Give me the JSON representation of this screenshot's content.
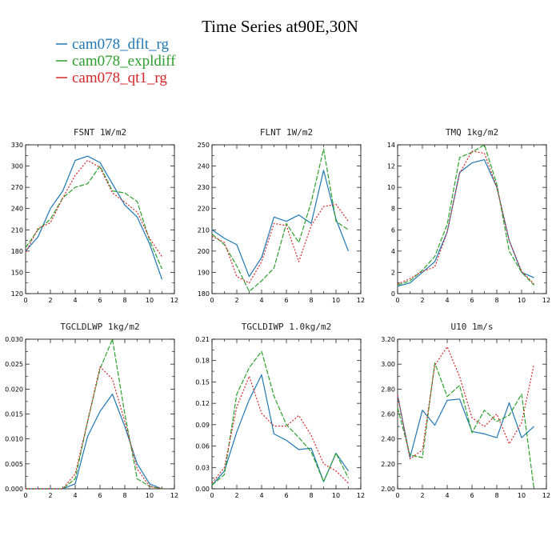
{
  "title": "Time Series at90E,30N",
  "colors": {
    "dflt": "#1f77b4",
    "expl": "#2ca02c",
    "qt1": "#d62728"
  },
  "legend": [
    {
      "label": "cam078_dflt_rg",
      "color": "#1f77b4"
    },
    {
      "label": "cam078_expldiff",
      "color": "#2ca02c"
    },
    {
      "label": "cam078_qt1_rg",
      "color": "#d62728"
    }
  ],
  "chart_data": [
    {
      "type": "line",
      "var": "FSNT",
      "unit": "1W/m2",
      "x": [
        0,
        1,
        2,
        3,
        4,
        5,
        6,
        7,
        8,
        9,
        10,
        11
      ],
      "xlim": [
        0,
        12
      ],
      "xticks": [
        "0",
        "2",
        "4",
        "6",
        "8",
        "10",
        "12"
      ],
      "ylim": [
        120,
        330
      ],
      "yticks": [
        "120",
        "150",
        "180",
        "210",
        "240",
        "270",
        "300",
        "330"
      ],
      "series": [
        {
          "name": "cam078_dflt_rg",
          "values": [
            180,
            200,
            240,
            265,
            308,
            314,
            305,
            275,
            245,
            228,
            190,
            140
          ]
        },
        {
          "name": "cam078_expldiff",
          "values": [
            185,
            210,
            225,
            255,
            270,
            275,
            300,
            265,
            262,
            250,
            195,
            155
          ]
        },
        {
          "name": "cam078_qt1_rg",
          "values": [
            178,
            212,
            220,
            255,
            287,
            308,
            298,
            262,
            249,
            235,
            198,
            172
          ]
        }
      ]
    },
    {
      "type": "line",
      "var": "FLNT",
      "unit": "1W/m2",
      "x": [
        0,
        1,
        2,
        3,
        4,
        5,
        6,
        7,
        8,
        9,
        10,
        11
      ],
      "xlim": [
        0,
        12
      ],
      "xticks": [
        "0",
        "2",
        "4",
        "6",
        "8",
        "10",
        "12"
      ],
      "ylim": [
        180,
        250
      ],
      "yticks": [
        "180",
        "190",
        "200",
        "210",
        "220",
        "230",
        "240",
        "250"
      ],
      "series": [
        {
          "name": "cam078_dflt_rg",
          "values": [
            210,
            206,
            203,
            188,
            197,
            216,
            214,
            217,
            213,
            238,
            215,
            200
          ]
        },
        {
          "name": "cam078_expldiff",
          "values": [
            208,
            203,
            193,
            181,
            186,
            192,
            213,
            204,
            223,
            248,
            214,
            210
          ]
        },
        {
          "name": "cam078_qt1_rg",
          "values": [
            207,
            204,
            188,
            185,
            195,
            213,
            212,
            195,
            212,
            221,
            222,
            214
          ]
        }
      ]
    },
    {
      "type": "line",
      "var": "TMQ",
      "unit": "1kg/m2",
      "x": [
        0,
        1,
        2,
        3,
        4,
        5,
        6,
        7,
        8,
        9,
        10,
        11
      ],
      "xlim": [
        0,
        12
      ],
      "xticks": [
        "0",
        "2",
        "4",
        "6",
        "8",
        "10",
        "12"
      ],
      "ylim": [
        0,
        14
      ],
      "yticks": [
        "0",
        "2",
        "4",
        "6",
        "8",
        "10",
        "12",
        "14"
      ],
      "series": [
        {
          "name": "cam078_dflt_rg",
          "values": [
            0.7,
            1.0,
            2.0,
            3.0,
            5.8,
            11.4,
            12.3,
            12.6,
            10.0,
            5.0,
            2.0,
            1.5
          ]
        },
        {
          "name": "cam078_expldiff",
          "values": [
            0.8,
            1.2,
            2.2,
            3.5,
            6.5,
            12.8,
            13.3,
            14.0,
            10.3,
            4.0,
            2.0,
            0.8
          ]
        },
        {
          "name": "cam078_qt1_rg",
          "values": [
            0.9,
            1.4,
            2.1,
            2.5,
            5.8,
            11.3,
            13.4,
            13.2,
            10.0,
            5.0,
            2.1,
            0.9
          ]
        }
      ]
    },
    {
      "type": "line",
      "var": "TGCLDLWP",
      "unit": "1kg/m2",
      "x": [
        0,
        1,
        2,
        3,
        4,
        5,
        6,
        7,
        8,
        9,
        10,
        11
      ],
      "xlim": [
        0,
        12
      ],
      "xticks": [
        "0",
        "2",
        "4",
        "6",
        "8",
        "10",
        "12"
      ],
      "ylim": [
        0,
        0.03
      ],
      "yticks": [
        "0.000",
        "0.005",
        "0.010",
        "0.015",
        "0.020",
        "0.025",
        "0.030"
      ],
      "series": [
        {
          "name": "cam078_dflt_rg",
          "values": [
            0,
            0,
            0,
            0,
            0.001,
            0.0105,
            0.0155,
            0.019,
            0.0125,
            0.005,
            0.001,
            0
          ]
        },
        {
          "name": "cam078_expldiff",
          "values": [
            0,
            0,
            0,
            0,
            0.002,
            0.0135,
            0.024,
            0.03,
            0.015,
            0.002,
            0.0005,
            0
          ]
        },
        {
          "name": "cam078_qt1_rg",
          "values": [
            0,
            0,
            0,
            0,
            0.003,
            0.0135,
            0.0245,
            0.022,
            0.0135,
            0.004,
            0.0005,
            0
          ]
        }
      ]
    },
    {
      "type": "line",
      "var": "TGCLDIWP",
      "unit": "1.0kg/m2",
      "x": [
        0,
        1,
        2,
        3,
        4,
        5,
        6,
        7,
        8,
        9,
        10,
        11
      ],
      "xlim": [
        0,
        12
      ],
      "xticks": [
        "0",
        "2",
        "4",
        "6",
        "8",
        "10",
        "12"
      ],
      "ylim": [
        0,
        0.21
      ],
      "yticks": [
        "0.00",
        "0.03",
        "0.06",
        "0.09",
        "0.12",
        "0.15",
        "0.18",
        "0.21"
      ],
      "series": [
        {
          "name": "cam078_dflt_rg",
          "values": [
            0.005,
            0.025,
            0.08,
            0.125,
            0.16,
            0.077,
            0.068,
            0.055,
            0.057,
            0.01,
            0.05,
            0.025
          ]
        },
        {
          "name": "cam078_expldiff",
          "values": [
            0.005,
            0.02,
            0.133,
            0.17,
            0.193,
            0.13,
            0.09,
            0.072,
            0.052,
            0.01,
            0.05,
            0.015
          ]
        },
        {
          "name": "cam078_qt1_rg",
          "values": [
            0.008,
            0.03,
            0.115,
            0.158,
            0.106,
            0.088,
            0.088,
            0.103,
            0.075,
            0.035,
            0.025,
            0.008
          ]
        }
      ]
    },
    {
      "type": "line",
      "var": "U10",
      "unit": "1m/s",
      "x": [
        0,
        1,
        2,
        3,
        4,
        5,
        6,
        7,
        8,
        9,
        10,
        11
      ],
      "xlim": [
        0,
        12
      ],
      "xticks": [
        "0",
        "2",
        "4",
        "6",
        "8",
        "10",
        "12"
      ],
      "ylim": [
        2.0,
        3.2
      ],
      "yticks": [
        "2.00",
        "2.20",
        "2.40",
        "2.60",
        "2.80",
        "3.00",
        "3.20"
      ],
      "series": [
        {
          "name": "cam078_dflt_rg",
          "values": [
            2.75,
            2.25,
            2.63,
            2.51,
            2.71,
            2.72,
            2.46,
            2.44,
            2.41,
            2.69,
            2.41,
            2.5
          ]
        },
        {
          "name": "cam078_expldiff",
          "values": [
            2.65,
            2.27,
            2.25,
            3.01,
            2.74,
            2.83,
            2.45,
            2.63,
            2.54,
            2.59,
            2.76,
            2.0
          ]
        },
        {
          "name": "cam078_qt1_rg",
          "values": [
            2.75,
            2.24,
            2.31,
            2.99,
            3.14,
            2.9,
            2.57,
            2.5,
            2.6,
            2.36,
            2.53,
            3.0
          ]
        }
      ]
    }
  ]
}
